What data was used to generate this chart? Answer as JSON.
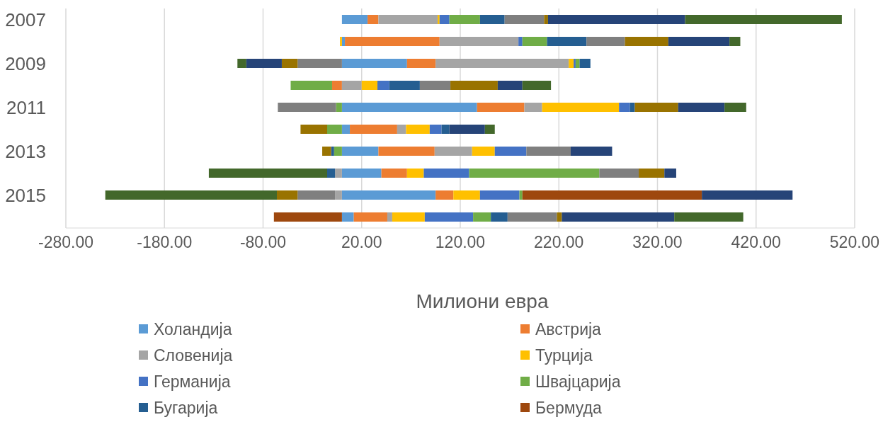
{
  "chart_data": {
    "type": "bar",
    "orientation": "horizontal",
    "stacked": true,
    "xlabel": "Милиони евра",
    "categories": [
      "2007",
      null,
      "2009",
      null,
      "2011",
      null,
      "2013",
      null,
      "2015",
      null
    ],
    "series": [
      {
        "name": "Холандија",
        "color": "#5b9bd5",
        "values": [
          26,
          3,
          66,
          null,
          137,
          8,
          37,
          40,
          95,
          12
        ]
      },
      {
        "name": "Австрија",
        "color": "#ed7d31",
        "values": [
          11,
          96,
          29,
          -10,
          48,
          48,
          57,
          26,
          18,
          34
        ]
      },
      {
        "name": "Словенија",
        "color": "#a5a5a5",
        "values": [
          60,
          80,
          135,
          20,
          18,
          9,
          38,
          -7,
          -7,
          5
        ]
      },
      {
        "name": "Турција",
        "color": "#ffc000",
        "values": [
          2,
          -2,
          5,
          16,
          78,
          24,
          23,
          17,
          27,
          33
        ]
      },
      {
        "name": "Германија",
        "color": "#4472c4",
        "values": [
          10,
          4,
          2,
          12,
          11,
          12,
          32,
          46,
          40,
          49
        ]
      },
      {
        "name": "Швајцарија",
        "color": "#70ad47",
        "values": [
          31,
          25,
          4,
          -42,
          -6,
          -15,
          -8,
          132,
          3,
          18
        ]
      },
      {
        "name": "Бугарија",
        "color": "#255e91",
        "values": [
          25,
          40,
          11,
          31,
          5,
          8,
          -3,
          -8,
          null,
          17
        ]
      },
      {
        "name": "Бермуда",
        "color": "#9e480e",
        "values": [
          null,
          null,
          null,
          null,
          null,
          null,
          null,
          null,
          182,
          -69
        ]
      },
      {
        "color": "#7f7f7f",
        "values": [
          40,
          39,
          -45,
          31,
          -59,
          null,
          45,
          40,
          -38,
          50
        ]
      },
      {
        "color": "#997300",
        "values": [
          4,
          44,
          -16,
          48,
          44,
          -27,
          -9,
          26,
          -21,
          5
        ]
      },
      {
        "color": "#264478",
        "values": [
          139,
          62,
          -36,
          25,
          47,
          36,
          42,
          12,
          92,
          114
        ]
      },
      {
        "color": "#43682b",
        "values": [
          159,
          11,
          -9,
          29,
          22,
          10,
          null,
          -120,
          -174,
          70
        ]
      }
    ],
    "xlim": [
      -280,
      520
    ],
    "xticks": [
      {
        "value": -280,
        "label": "-280.00"
      },
      {
        "value": -180,
        "label": "-180.00"
      },
      {
        "value": -80,
        "label": "-80.00"
      },
      {
        "value": 20,
        "label": "20.00"
      },
      {
        "value": 120,
        "label": "120.00"
      },
      {
        "value": 220,
        "label": "220.00"
      },
      {
        "value": 320,
        "label": "320.00"
      },
      {
        "value": 420,
        "label": "420.00"
      },
      {
        "value": 520,
        "label": "520.00"
      }
    ],
    "grid": "x",
    "legend": "bottom"
  }
}
